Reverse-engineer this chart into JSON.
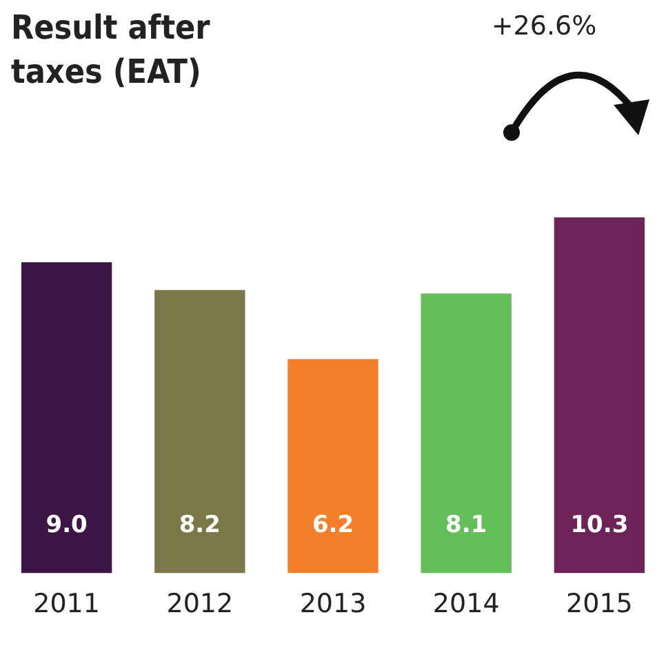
{
  "chart_data": {
    "type": "bar",
    "title": "Result after taxes (EAT)",
    "categories": [
      "2011",
      "2012",
      "2013",
      "2014",
      "2015"
    ],
    "values": [
      9.0,
      8.2,
      6.2,
      8.1,
      10.3
    ],
    "colors": [
      "#3d1645",
      "#7c7748",
      "#f47f2a",
      "#64bf5a",
      "#6e2358"
    ],
    "value_labels": [
      "9.0",
      "8.2",
      "6.2",
      "8.1",
      "10.3"
    ],
    "annotations": [
      "+26.6%"
    ],
    "grid": false,
    "legend": false,
    "tick_labels": "x"
  }
}
